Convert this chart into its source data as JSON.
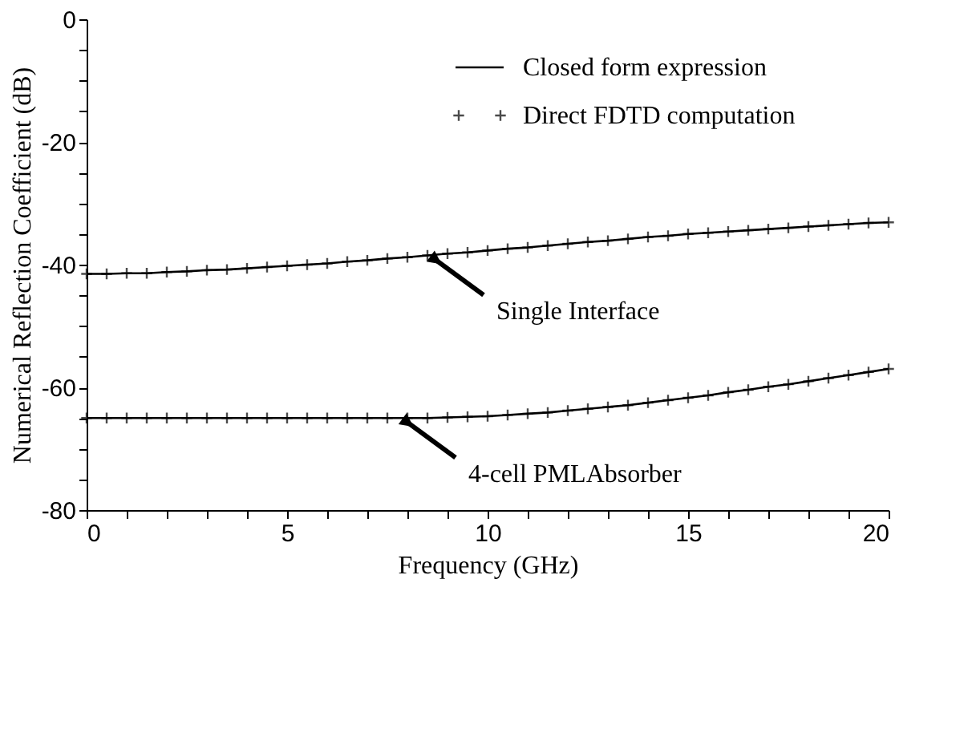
{
  "chart_data": {
    "type": "line",
    "xlabel": "Frequency (GHz)",
    "ylabel": "Numerical Reflection Coefficient (dB)",
    "xlim": [
      0,
      20
    ],
    "ylim": [
      -80,
      0
    ],
    "xticks": [
      0,
      {
        "value": 1,
        "label": null
      },
      {
        "value": 2,
        "label": null
      },
      {
        "value": 3,
        "label": null
      },
      {
        "value": 4,
        "label": null
      },
      5,
      {
        "value": 6,
        "label": null
      },
      {
        "value": 7,
        "label": null
      },
      {
        "value": 8,
        "label": null
      },
      {
        "value": 9,
        "label": null
      },
      10,
      {
        "value": 11,
        "label": null
      },
      {
        "value": 12,
        "label": null
      },
      {
        "value": 13,
        "label": null
      },
      {
        "value": 14,
        "label": null
      },
      15,
      {
        "value": 16,
        "label": null
      },
      {
        "value": 17,
        "label": null
      },
      {
        "value": 18,
        "label": null
      },
      {
        "value": 19,
        "label": null
      },
      20
    ],
    "yticks": [
      -80,
      {
        "value": -75,
        "label": null
      },
      {
        "value": -70,
        "label": null
      },
      {
        "value": -65,
        "label": null
      },
      -60,
      {
        "value": -55,
        "label": null
      },
      {
        "value": -50,
        "label": null
      },
      {
        "value": -45,
        "label": null
      },
      -40,
      {
        "value": -35,
        "label": null
      },
      {
        "value": -30,
        "label": null
      },
      {
        "value": -25,
        "label": null
      },
      -20,
      {
        "value": -15,
        "label": null
      },
      {
        "value": -10,
        "label": null
      },
      {
        "value": -5,
        "label": null
      },
      0
    ],
    "grid": false,
    "legend": "top right",
    "series": [
      {
        "name": "Closed form expression",
        "marker": "none",
        "line_style": "solid",
        "color": "#000000",
        "x": [
          0,
          0.5,
          1,
          1.5,
          2,
          2.5,
          3,
          3.5,
          4,
          4.5,
          5,
          5.5,
          6,
          6.5,
          7,
          7.5,
          8,
          8.5,
          9,
          9.5,
          10,
          10.5,
          11,
          11.5,
          12,
          12.5,
          13,
          13.5,
          14,
          14.5,
          15,
          15.5,
          16,
          16.5,
          17,
          17.5,
          18,
          18.5,
          19,
          19.5,
          20
        ],
        "values": [
          -41.5,
          -41.5,
          -41.4,
          -41.4,
          -41.2,
          -41.1,
          -40.9,
          -40.8,
          -40.6,
          -40.4,
          -40.2,
          -40.0,
          -39.8,
          -39.5,
          -39.3,
          -39.0,
          -38.8,
          -38.5,
          -38.2,
          -38.0,
          -37.7,
          -37.4,
          -37.2,
          -36.9,
          -36.6,
          -36.3,
          -36.1,
          -35.8,
          -35.5,
          -35.3,
          -35.0,
          -34.8,
          -34.6,
          -34.4,
          -34.2,
          -34.0,
          -33.8,
          -33.6,
          -33.4,
          -33.2,
          -33.1
        ]
      },
      {
        "marker": "none",
        "line_style": "solid",
        "color": "#000000",
        "x": [
          0,
          0.5,
          1,
          1.5,
          2,
          2.5,
          3,
          3.5,
          4,
          4.5,
          5,
          5.5,
          6,
          6.5,
          7,
          7.5,
          8,
          8.5,
          9,
          9.5,
          10,
          10.5,
          11,
          11.5,
          12,
          12.5,
          13,
          13.5,
          14,
          14.5,
          15,
          15.5,
          16,
          16.5,
          17,
          17.5,
          18,
          18.5,
          19,
          19.5,
          20
        ],
        "values": [
          -65,
          -65,
          -65,
          -65,
          -65,
          -65,
          -65,
          -65,
          -65,
          -65,
          -65,
          -65,
          -65,
          -65,
          -65,
          -65,
          -65,
          -65,
          -64.9,
          -64.8,
          -64.7,
          -64.5,
          -64.3,
          -64.1,
          -63.8,
          -63.5,
          -63.2,
          -62.9,
          -62.5,
          -62.1,
          -61.7,
          -61.3,
          -60.8,
          -60.4,
          -59.9,
          -59.5,
          -59.0,
          -58.5,
          -58.0,
          -57.5,
          -57.0
        ]
      },
      {
        "name": "Direct FDTD computation",
        "type": "scatter",
        "marker": "cross",
        "color": "#000000",
        "x": [
          0,
          0.5,
          1,
          1.5,
          2,
          2.5,
          3,
          3.5,
          4,
          4.5,
          5,
          5.5,
          6,
          6.5,
          7,
          7.5,
          8,
          8.5,
          9,
          9.5,
          10,
          10.5,
          11,
          11.5,
          12,
          12.5,
          13,
          13.5,
          14,
          14.5,
          15,
          15.5,
          16,
          16.5,
          17,
          17.5,
          18,
          18.5,
          19,
          19.5,
          20
        ],
        "values": [
          -41.5,
          -41.5,
          -41.4,
          -41.4,
          -41.2,
          -41.1,
          -40.9,
          -40.8,
          -40.6,
          -40.4,
          -40.2,
          -40.0,
          -39.8,
          -39.5,
          -39.3,
          -39.0,
          -38.8,
          -38.5,
          -38.2,
          -38.0,
          -37.7,
          -37.4,
          -37.2,
          -36.9,
          -36.6,
          -36.3,
          -36.1,
          -35.8,
          -35.5,
          -35.3,
          -35.0,
          -34.8,
          -34.6,
          -34.4,
          -34.2,
          -34.0,
          -33.8,
          -33.6,
          -33.4,
          -33.2,
          -33.1
        ]
      },
      {
        "type": "scatter",
        "marker": "cross",
        "color": "#000000",
        "x": [
          0,
          0.5,
          1,
          1.5,
          2,
          2.5,
          3,
          3.5,
          4,
          4.5,
          5,
          5.5,
          6,
          6.5,
          7,
          7.5,
          8,
          8.5,
          9,
          9.5,
          10,
          10.5,
          11,
          11.5,
          12,
          12.5,
          13,
          13.5,
          14,
          14.5,
          15,
          15.5,
          16,
          16.5,
          17,
          17.5,
          18,
          18.5,
          19,
          19.5,
          20
        ],
        "values": [
          -65,
          -65,
          -65,
          -65,
          -65,
          -65,
          -65,
          -65,
          -65,
          -65,
          -65,
          -65,
          -65,
          -65,
          -65,
          -65,
          -65,
          -65,
          -64.9,
          -64.8,
          -64.7,
          -64.5,
          -64.3,
          -64.1,
          -63.8,
          -63.5,
          -63.2,
          -62.9,
          -62.5,
          -62.1,
          -61.7,
          -61.3,
          -60.8,
          -60.4,
          -59.9,
          -59.5,
          -59.0,
          -58.5,
          -58.0,
          -57.5,
          -57.0
        ]
      }
    ],
    "annotations": [
      {
        "text": "Single Interface",
        "x": 8.7,
        "y": -39.2
      },
      {
        "text": "4-cell PMLAbsorber",
        "x": 8.0,
        "y": -65.7
      }
    ]
  }
}
